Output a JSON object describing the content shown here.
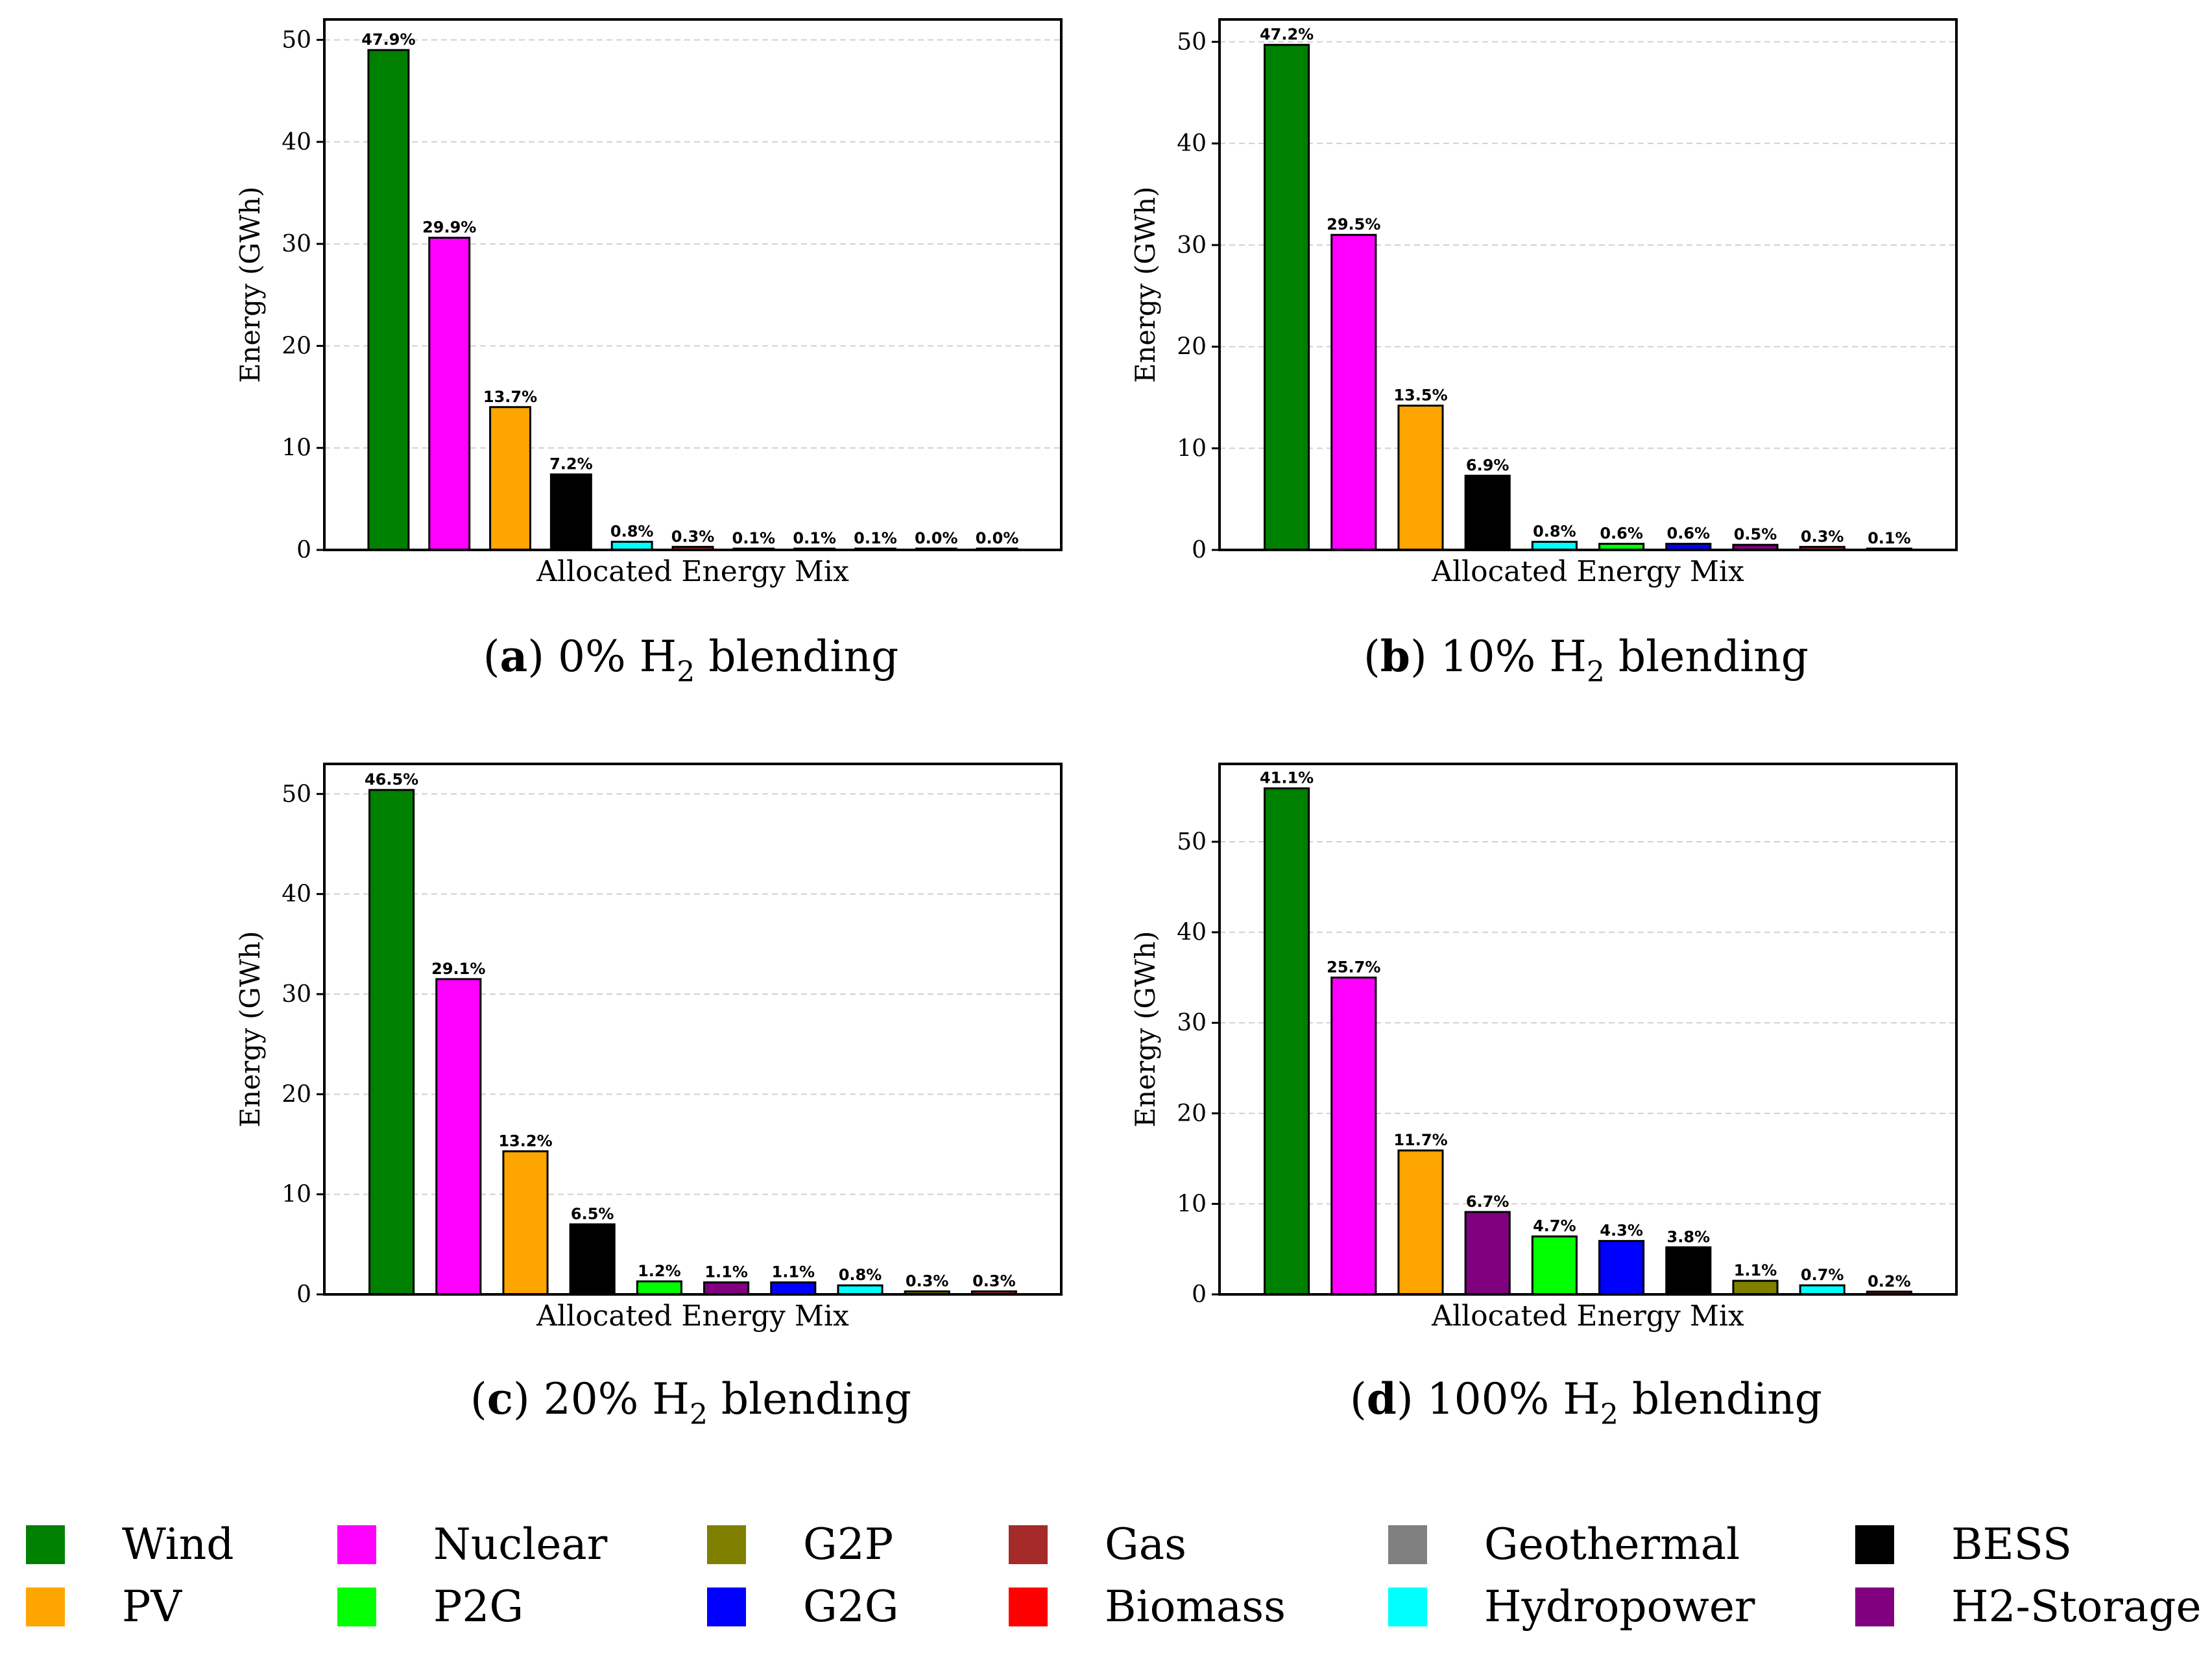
{
  "chart_data": [
    {
      "type": "bar",
      "caption_letter": "a",
      "caption_prefix": "0% H",
      "caption_suffix": " blending",
      "xlabel": "Allocated Energy Mix",
      "ylabel": "Energy (GWh)",
      "ylim": [
        0,
        52
      ],
      "yticks": [
        0,
        10,
        20,
        30,
        40,
        50
      ],
      "grid": "horizontal dashed",
      "bars": [
        {
          "color": "#008000",
          "value": 49.0,
          "label": "47.9%"
        },
        {
          "color": "#ff00ff",
          "value": 30.6,
          "label": "29.9%"
        },
        {
          "color": "#ffa500",
          "value": 14.0,
          "label": "13.7%"
        },
        {
          "color": "#000000",
          "value": 7.4,
          "label": "7.2%"
        },
        {
          "color": "#00ffff",
          "value": 0.8,
          "label": "0.8%"
        },
        {
          "color": "#a52a2a",
          "value": 0.3,
          "label": "0.3%"
        },
        {
          "color": "#ff0000",
          "value": 0.1,
          "label": "0.1%"
        },
        {
          "color": "#808080",
          "value": 0.1,
          "label": "0.1%"
        },
        {
          "color": "#808000",
          "value": 0.1,
          "label": "0.1%"
        },
        {
          "color": "#00ff00",
          "value": 0.0,
          "label": "0.0%"
        },
        {
          "color": "#0000ff",
          "value": 0.0,
          "label": "0.0%"
        }
      ]
    },
    {
      "type": "bar",
      "caption_letter": "b",
      "caption_prefix": "10% H",
      "caption_suffix": " blending",
      "xlabel": "Allocated Energy Mix",
      "ylabel": "Energy (GWh)",
      "ylim": [
        0,
        52.2
      ],
      "yticks": [
        0,
        10,
        20,
        30,
        40,
        50
      ],
      "grid": "horizontal dashed",
      "bars": [
        {
          "color": "#008000",
          "value": 49.7,
          "label": "47.2%"
        },
        {
          "color": "#ff00ff",
          "value": 31.0,
          "label": "29.5%"
        },
        {
          "color": "#ffa500",
          "value": 14.2,
          "label": "13.5%"
        },
        {
          "color": "#000000",
          "value": 7.3,
          "label": "6.9%"
        },
        {
          "color": "#00ffff",
          "value": 0.8,
          "label": "0.8%"
        },
        {
          "color": "#00ff00",
          "value": 0.6,
          "label": "0.6%"
        },
        {
          "color": "#0000ff",
          "value": 0.6,
          "label": "0.6%"
        },
        {
          "color": "#800080",
          "value": 0.5,
          "label": "0.5%"
        },
        {
          "color": "#a52a2a",
          "value": 0.3,
          "label": "0.3%"
        },
        {
          "color": "#808000",
          "value": 0.1,
          "label": "0.1%"
        }
      ]
    },
    {
      "type": "bar",
      "caption_letter": "c",
      "caption_prefix": "20% H",
      "caption_suffix": " blending",
      "xlabel": "Allocated Energy Mix",
      "ylabel": "Energy (GWh)",
      "ylim": [
        0,
        53
      ],
      "yticks": [
        0,
        10,
        20,
        30,
        40,
        50
      ],
      "grid": "horizontal dashed",
      "bars": [
        {
          "color": "#008000",
          "value": 50.4,
          "label": "46.5%"
        },
        {
          "color": "#ff00ff",
          "value": 31.5,
          "label": "29.1%"
        },
        {
          "color": "#ffa500",
          "value": 14.3,
          "label": "13.2%"
        },
        {
          "color": "#000000",
          "value": 7.0,
          "label": "6.5%"
        },
        {
          "color": "#00ff00",
          "value": 1.3,
          "label": "1.2%"
        },
        {
          "color": "#800080",
          "value": 1.2,
          "label": "1.1%"
        },
        {
          "color": "#0000ff",
          "value": 1.2,
          "label": "1.1%"
        },
        {
          "color": "#00ffff",
          "value": 0.9,
          "label": "0.8%"
        },
        {
          "color": "#808000",
          "value": 0.3,
          "label": "0.3%"
        },
        {
          "color": "#a52a2a",
          "value": 0.3,
          "label": "0.3%"
        }
      ]
    },
    {
      "type": "bar",
      "caption_letter": "d",
      "caption_prefix": "100% H",
      "caption_suffix": " blending",
      "xlabel": "Allocated Energy Mix",
      "ylabel": "Energy (GWh)",
      "ylim": [
        0,
        58.6
      ],
      "yticks": [
        0,
        10,
        20,
        30,
        40,
        50
      ],
      "grid": "horizontal dashed",
      "bars": [
        {
          "color": "#008000",
          "value": 55.9,
          "label": "41.1%"
        },
        {
          "color": "#ff00ff",
          "value": 35.0,
          "label": "25.7%"
        },
        {
          "color": "#ffa500",
          "value": 15.9,
          "label": "11.7%"
        },
        {
          "color": "#800080",
          "value": 9.1,
          "label": "6.7%"
        },
        {
          "color": "#00ff00",
          "value": 6.4,
          "label": "4.7%"
        },
        {
          "color": "#0000ff",
          "value": 5.9,
          "label": "4.3%"
        },
        {
          "color": "#000000",
          "value": 5.2,
          "label": "3.8%"
        },
        {
          "color": "#808000",
          "value": 1.5,
          "label": "1.1%"
        },
        {
          "color": "#00ffff",
          "value": 1.0,
          "label": "0.7%"
        },
        {
          "color": "#a52a2a",
          "value": 0.3,
          "label": "0.2%"
        }
      ]
    }
  ],
  "caption_subscript": "2",
  "legend": [
    {
      "label": "Wind",
      "color": "#008000"
    },
    {
      "label": "Nuclear",
      "color": "#ff00ff"
    },
    {
      "label": "G2P",
      "color": "#808000"
    },
    {
      "label": "Gas",
      "color": "#a52a2a"
    },
    {
      "label": "Geothermal",
      "color": "#808080"
    },
    {
      "label": "BESS",
      "color": "#000000"
    },
    {
      "label": "PV",
      "color": "#ffa500"
    },
    {
      "label": "P2G",
      "color": "#00ff00"
    },
    {
      "label": "G2G",
      "color": "#0000ff"
    },
    {
      "label": "Biomass",
      "color": "#ff0000"
    },
    {
      "label": "Hydropower",
      "color": "#00ffff"
    },
    {
      "label": "H2-Storage",
      "color": "#800080"
    }
  ]
}
